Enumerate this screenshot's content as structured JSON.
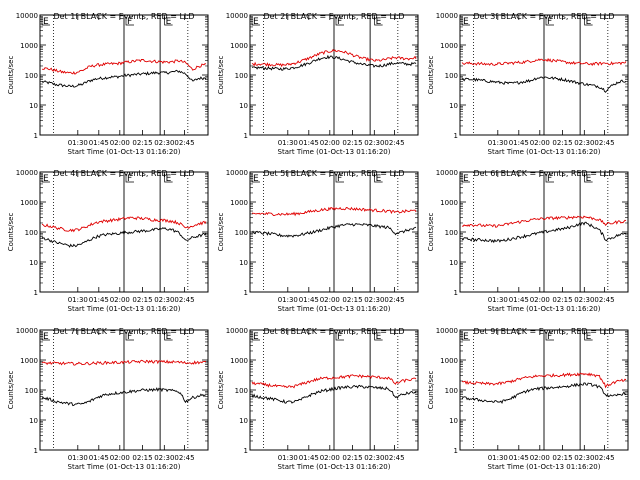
{
  "figure": {
    "ylabel": "Counts/sec",
    "xlabel": "Start Time (01-Oct-13 01:16:20)",
    "xticks": [
      "01:30",
      "01:45",
      "02:00",
      "02:15",
      "02:30",
      "02:45"
    ],
    "yticks": [
      "1",
      "10",
      "100",
      "1000",
      "10000"
    ],
    "mark_labels": [
      "E",
      "F",
      "E"
    ],
    "colors": {
      "events": "#000000",
      "lld": "#e00000"
    }
  },
  "chart_data": [
    {
      "type": "line",
      "title": "Det 1f BLACK = Events, RED = LLD",
      "ylog": true,
      "ylim": [
        1,
        10000
      ],
      "series": [
        {
          "key": "events",
          "color": "#000000",
          "values": [
            60,
            55,
            48,
            45,
            42,
            43,
            50,
            65,
            75,
            80,
            85,
            88,
            95,
            100,
            105,
            110,
            115,
            120,
            118,
            125,
            135,
            110,
            60,
            78,
            80
          ]
        },
        {
          "key": "lld",
          "color": "#e00000",
          "values": [
            170,
            160,
            140,
            125,
            118,
            120,
            145,
            190,
            215,
            225,
            235,
            240,
            260,
            280,
            300,
            310,
            290,
            280,
            270,
            275,
            300,
            255,
            150,
            200,
            220
          ]
        }
      ]
    },
    {
      "type": "line",
      "title": "Det 2f BLACK = Events, RED = LLD",
      "ylog": true,
      "ylim": [
        1,
        10000
      ],
      "series": [
        {
          "key": "events",
          "color": "#000000",
          "values": [
            170,
            175,
            170,
            165,
            160,
            162,
            175,
            200,
            235,
            290,
            360,
            400,
            390,
            350,
            300,
            260,
            230,
            210,
            200,
            205,
            230,
            250,
            240,
            230,
            240
          ]
        },
        {
          "key": "lld",
          "color": "#e00000",
          "values": [
            230,
            235,
            230,
            225,
            215,
            220,
            240,
            280,
            340,
            420,
            520,
            600,
            650,
            620,
            540,
            440,
            370,
            330,
            300,
            310,
            350,
            380,
            360,
            350,
            380
          ]
        }
      ]
    },
    {
      "type": "line",
      "title": "Det 3f BLACK = Events, RED = LLD",
      "ylog": true,
      "ylim": [
        1,
        10000
      ],
      "series": [
        {
          "key": "events",
          "color": "#000000",
          "values": [
            70,
            72,
            70,
            65,
            62,
            58,
            55,
            52,
            55,
            60,
            65,
            80,
            85,
            80,
            75,
            70,
            62,
            55,
            50,
            45,
            42,
            30,
            45,
            60,
            65
          ]
        },
        {
          "key": "lld",
          "color": "#e00000",
          "values": [
            240,
            245,
            240,
            235,
            230,
            230,
            240,
            250,
            260,
            270,
            290,
            320,
            330,
            310,
            290,
            270,
            255,
            245,
            240,
            235,
            240,
            250,
            240,
            250,
            260
          ]
        }
      ]
    },
    {
      "type": "line",
      "title": "Det 4f BLACK = Events, RED = LLD",
      "ylog": true,
      "ylim": [
        1,
        10000
      ],
      "series": [
        {
          "key": "events",
          "color": "#000000",
          "values": [
            65,
            55,
            45,
            40,
            35,
            35,
            42,
            55,
            70,
            80,
            85,
            90,
            95,
            100,
            105,
            110,
            115,
            125,
            130,
            120,
            95,
            50,
            65,
            75,
            85
          ]
        },
        {
          "key": "lld",
          "color": "#e00000",
          "values": [
            170,
            160,
            140,
            125,
            115,
            118,
            135,
            170,
            210,
            230,
            245,
            260,
            280,
            300,
            290,
            280,
            260,
            250,
            245,
            230,
            200,
            140,
            160,
            190,
            210
          ]
        }
      ]
    },
    {
      "type": "line",
      "title": "Det 5f BLACK = Events, RED = LLD",
      "ylog": true,
      "ylim": [
        1,
        10000
      ],
      "series": [
        {
          "key": "events",
          "color": "#000000",
          "values": [
            100,
            95,
            90,
            85,
            78,
            75,
            75,
            80,
            90,
            100,
            115,
            130,
            150,
            165,
            175,
            180,
            175,
            170,
            160,
            150,
            140,
            90,
            100,
            120,
            130
          ]
        },
        {
          "key": "lld",
          "color": "#e00000",
          "values": [
            400,
            410,
            405,
            400,
            395,
            390,
            400,
            420,
            460,
            500,
            540,
            580,
            600,
            620,
            610,
            590,
            570,
            550,
            530,
            510,
            500,
            450,
            480,
            500,
            520
          ]
        }
      ]
    },
    {
      "type": "line",
      "title": "Det 6f BLACK = Events, RED = LLD",
      "ylog": true,
      "ylim": [
        1,
        10000
      ],
      "series": [
        {
          "key": "events",
          "color": "#000000",
          "values": [
            60,
            58,
            55,
            55,
            52,
            50,
            52,
            58,
            65,
            72,
            80,
            90,
            100,
            110,
            120,
            130,
            150,
            180,
            200,
            160,
            120,
            55,
            65,
            80,
            90
          ]
        },
        {
          "key": "lld",
          "color": "#e00000",
          "values": [
            170,
            175,
            170,
            165,
            160,
            160,
            170,
            190,
            210,
            230,
            250,
            270,
            280,
            290,
            295,
            300,
            310,
            320,
            320,
            290,
            260,
            180,
            200,
            220,
            230
          ]
        }
      ]
    },
    {
      "type": "line",
      "title": "Det 7f BLACK = Events, RED = LLD",
      "ylog": true,
      "ylim": [
        1,
        10000
      ],
      "series": [
        {
          "key": "events",
          "color": "#000000",
          "values": [
            55,
            50,
            42,
            38,
            35,
            33,
            35,
            42,
            55,
            68,
            75,
            80,
            85,
            90,
            95,
            100,
            100,
            105,
            100,
            95,
            90,
            40,
            55,
            65,
            70
          ]
        },
        {
          "key": "lld",
          "color": "#e00000",
          "values": [
            780,
            790,
            780,
            770,
            760,
            755,
            760,
            770,
            790,
            810,
            820,
            830,
            840,
            860,
            880,
            900,
            890,
            880,
            870,
            860,
            850,
            800,
            820,
            830,
            840
          ]
        }
      ]
    },
    {
      "type": "line",
      "title": "Det 8f BLACK = Events, RED = LLD",
      "ylog": true,
      "ylim": [
        1,
        10000
      ],
      "series": [
        {
          "key": "events",
          "color": "#000000",
          "values": [
            65,
            60,
            55,
            50,
            45,
            40,
            40,
            45,
            60,
            75,
            90,
            100,
            110,
            120,
            125,
            128,
            130,
            125,
            120,
            115,
            110,
            55,
            70,
            80,
            85
          ]
        },
        {
          "key": "lld",
          "color": "#e00000",
          "values": [
            170,
            160,
            150,
            140,
            130,
            125,
            130,
            150,
            180,
            210,
            240,
            250,
            260,
            270,
            280,
            300,
            290,
            280,
            270,
            260,
            250,
            160,
            200,
            220,
            230
          ]
        }
      ]
    },
    {
      "type": "line",
      "title": "Det 9f BLACK = Events, RED = LLD",
      "ylog": true,
      "ylim": [
        1,
        10000
      ],
      "series": [
        {
          "key": "events",
          "color": "#000000",
          "values": [
            55,
            52,
            48,
            45,
            42,
            40,
            42,
            50,
            65,
            85,
            100,
            110,
            115,
            120,
            125,
            130,
            140,
            150,
            160,
            150,
            130,
            70,
            60,
            70,
            80
          ]
        },
        {
          "key": "lld",
          "color": "#e00000",
          "values": [
            180,
            175,
            170,
            165,
            160,
            160,
            170,
            190,
            220,
            250,
            270,
            290,
            300,
            305,
            310,
            320,
            330,
            340,
            350,
            330,
            300,
            130,
            170,
            200,
            210
          ]
        }
      ]
    }
  ]
}
